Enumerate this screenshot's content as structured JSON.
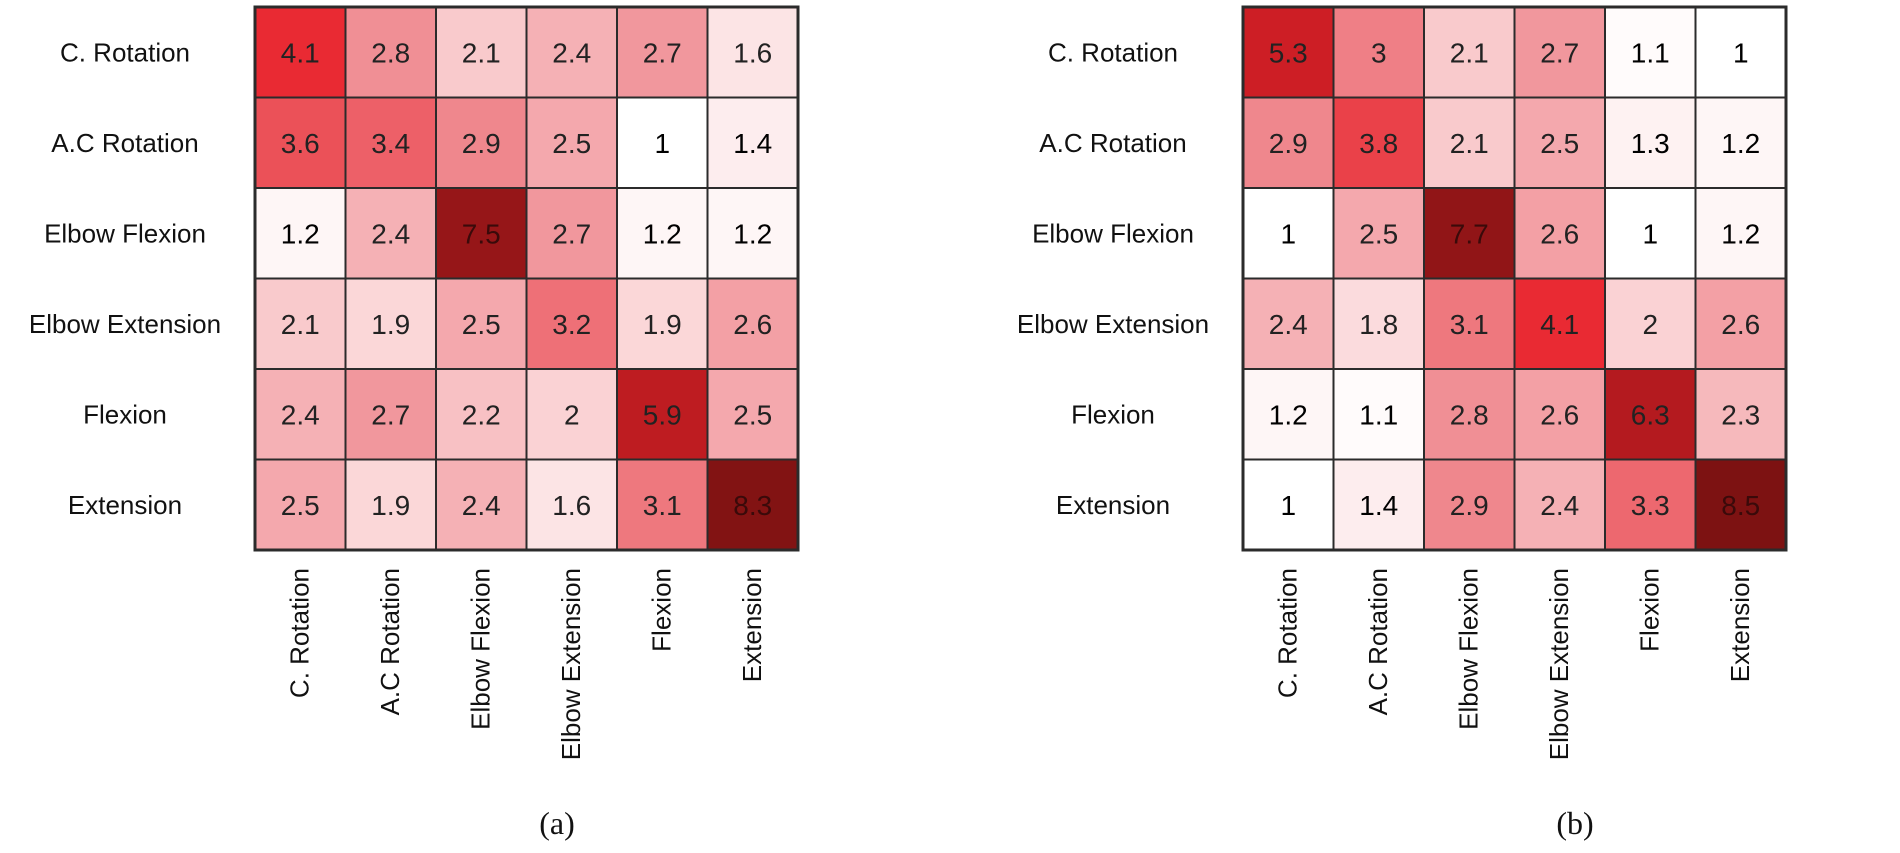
{
  "chart_data": [
    {
      "type": "heatmap",
      "caption": "(a)",
      "rows": [
        "C. Rotation",
        "A.C Rotation",
        "Elbow Flexion",
        "Elbow Extension",
        "Flexion",
        "Extension"
      ],
      "columns": [
        "C. Rotation",
        "A.C Rotation",
        "Elbow Flexion",
        "Elbow Extension",
        "Flexion",
        "Extension"
      ],
      "values": [
        [
          4.1,
          2.8,
          2.1,
          2.4,
          2.7,
          1.6
        ],
        [
          3.6,
          3.4,
          2.9,
          2.5,
          1,
          1.4
        ],
        [
          1.2,
          2.4,
          7.5,
          2.7,
          1.2,
          1.2
        ],
        [
          2.1,
          1.9,
          2.5,
          3.2,
          1.9,
          2.6
        ],
        [
          2.4,
          2.7,
          2.2,
          2,
          5.9,
          2.5
        ],
        [
          2.5,
          1.9,
          2.4,
          1.6,
          3.1,
          8.3
        ]
      ],
      "color_scale": [
        "#ffffff",
        "#fad2d4",
        "#f08f95",
        "#e8222b",
        "#7d1212"
      ]
    },
    {
      "type": "heatmap",
      "caption": "(b)",
      "rows": [
        "C. Rotation",
        "A.C Rotation",
        "Elbow Flexion",
        "Elbow Extension",
        "Flexion",
        "Extension"
      ],
      "columns": [
        "C. Rotation",
        "A.C Rotation",
        "Elbow Flexion",
        "Elbow Extension",
        "Flexion",
        "Extension"
      ],
      "values": [
        [
          5.3,
          3,
          2.1,
          2.7,
          1.1,
          1
        ],
        [
          2.9,
          3.8,
          2.1,
          2.5,
          1.3,
          1.2
        ],
        [
          1,
          2.5,
          7.7,
          2.6,
          1,
          1.2
        ],
        [
          2.4,
          1.8,
          3.1,
          4.1,
          2,
          2.6
        ],
        [
          1.2,
          1.1,
          2.8,
          2.6,
          6.3,
          2.3
        ],
        [
          1,
          1.4,
          2.9,
          2.4,
          3.3,
          8.5
        ]
      ],
      "color_scale": [
        "#ffffff",
        "#fad2d4",
        "#f08f95",
        "#e8222b",
        "#7d1212"
      ]
    }
  ]
}
